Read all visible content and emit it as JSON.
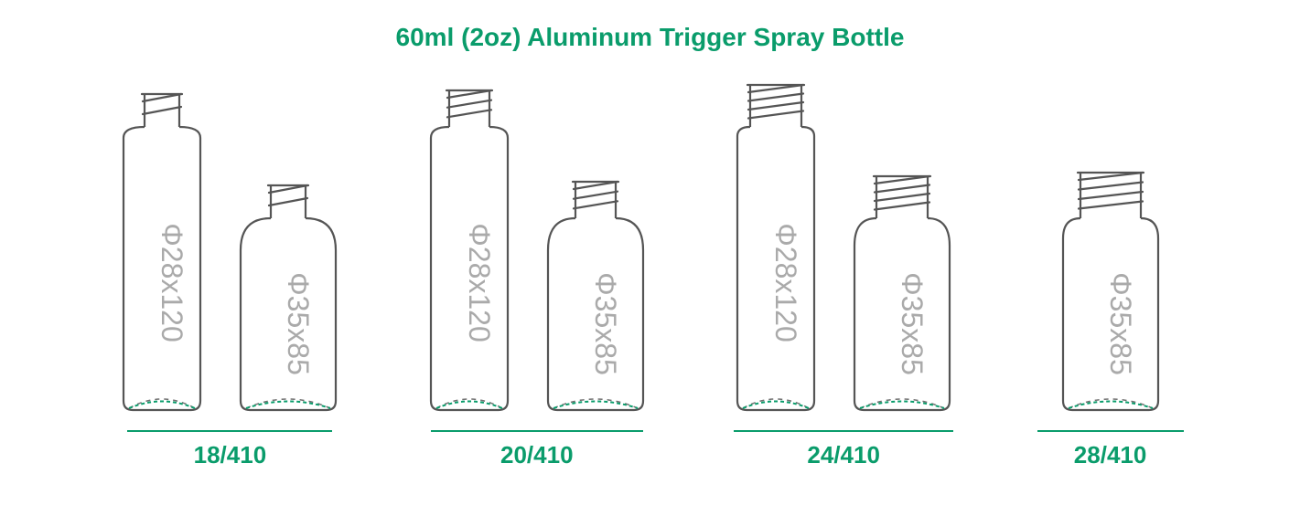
{
  "title": "60ml (2oz) Aluminum Trigger Spray Bottle",
  "title_fontsize": 28,
  "title_color": "#0a9c6b",
  "bottle_outline_color": "#555555",
  "bottle_outline_width": 2.2,
  "dim_text_color": "#aaaaaa",
  "dim_text_fontsize": 32,
  "base_dash_color": "#707070",
  "base_arc_color": "#0a9c6b",
  "underline_color": "#0a9c6b",
  "underline_thickness": 2,
  "label_color": "#0a9c6b",
  "label_fontsize": 26,
  "groups": [
    {
      "label": "18/410",
      "underline_width": 224,
      "bottles": [
        {
          "dim": "Φ28x120",
          "body_w": 84,
          "body_h": 310,
          "neck_w": 38,
          "neck_h": 40,
          "threads": 2,
          "shoulder": 12
        },
        {
          "dim": "Φ35x85",
          "body_w": 104,
          "body_h": 210,
          "neck_w": 38,
          "neck_h": 40,
          "threads": 2,
          "shoulder": 35
        }
      ]
    },
    {
      "label": "20/410",
      "underline_width": 232,
      "bottles": [
        {
          "dim": "Φ28x120",
          "body_w": 84,
          "body_h": 310,
          "neck_w": 44,
          "neck_h": 44,
          "threads": 3,
          "shoulder": 12
        },
        {
          "dim": "Φ35x85",
          "body_w": 104,
          "body_h": 210,
          "neck_w": 44,
          "neck_h": 44,
          "threads": 3,
          "shoulder": 35
        }
      ]
    },
    {
      "label": "24/410",
      "underline_width": 240,
      "bottles": [
        {
          "dim": "Φ28x120",
          "body_w": 84,
          "body_h": 310,
          "neck_w": 56,
          "neck_h": 50,
          "threads": 4,
          "shoulder": 10
        },
        {
          "dim": "Φ35x85",
          "body_w": 104,
          "body_h": 210,
          "neck_w": 56,
          "neck_h": 50,
          "threads": 4,
          "shoulder": 30
        }
      ]
    },
    {
      "label": "28/410",
      "underline_width": 160,
      "bottles": [
        {
          "dim": "Φ35x85",
          "body_w": 104,
          "body_h": 210,
          "neck_w": 66,
          "neck_h": 54,
          "threads": 4,
          "shoulder": 22
        }
      ]
    }
  ]
}
